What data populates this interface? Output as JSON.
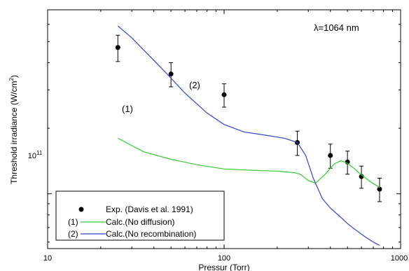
{
  "chart_data": {
    "type": "scatter",
    "xlabel": "Pressur (Torr)",
    "ylabel": "Threshold irradiance (W/cm",
    "ylabel_sup": "2",
    "ylabel_end": ")",
    "xscale": "log",
    "yscale": "log",
    "xlim": [
      10,
      1000
    ],
    "ylim": [
      56000000000.0,
      700000000000.0
    ],
    "x_ticks": [
      {
        "v": 10,
        "label": "10"
      },
      {
        "v": 100,
        "label": "100"
      },
      {
        "v": 1000,
        "label": "1000"
      }
    ],
    "y_ticks": [
      {
        "v": 100000000000.0,
        "base": "10",
        "exp": "11"
      }
    ],
    "grid": false,
    "annotation": "λ=1064 nm",
    "legend_position": "bottom-left",
    "series": [
      {
        "name": "Exp. (Davis et al. 1991)",
        "kind": "points",
        "color": "#000000",
        "x": [
          25,
          50,
          100,
          260,
          400,
          500,
          600,
          760
        ],
        "y": [
          470000000000.0,
          355000000000.0,
          285000000000.0,
          172000000000.0,
          150000000000.0,
          140000000000.0,
          120000000000.0,
          105000000000.0
        ],
        "err": [
          65000000000.0,
          45000000000.0,
          35000000000.0,
          22000000000.0,
          19000000000.0,
          17000000000.0,
          14000000000.0,
          13000000000.0
        ]
      },
      {
        "name": "Calc.(No diffusion)",
        "label": "(1)",
        "kind": "line",
        "color": "#33cc33",
        "x": [
          25,
          35,
          50,
          70,
          100,
          150,
          200,
          250,
          270,
          300,
          330,
          370,
          420,
          460,
          500,
          550,
          600,
          680,
          760
        ],
        "y": [
          180000000000.0,
          156000000000.0,
          144000000000.0,
          136000000000.0,
          130000000000.0,
          128000000000.0,
          127000000000.0,
          125000000000.0,
          123000000000.0,
          115000000000.0,
          112000000000.0,
          122000000000.0,
          137000000000.0,
          142000000000.0,
          138000000000.0,
          130000000000.0,
          122000000000.0,
          113000000000.0,
          107000000000.0
        ]
      },
      {
        "name": "Calc.(No recombination)",
        "label": "(2)",
        "kind": "line",
        "color": "#3344cc",
        "x": [
          25,
          30,
          40,
          50,
          60,
          80,
          100,
          130,
          170,
          220,
          260,
          290,
          320,
          360,
          400,
          450,
          500,
          560,
          620,
          700,
          760
        ],
        "y": [
          590000000000.0,
          520000000000.0,
          410000000000.0,
          340000000000.0,
          290000000000.0,
          235000000000.0,
          208000000000.0,
          192000000000.0,
          186000000000.0,
          180000000000.0,
          172000000000.0,
          150000000000.0,
          118000000000.0,
          95000000000.0,
          86000000000.0,
          79000000000.0,
          73000000000.0,
          68000000000.0,
          64000000000.0,
          60000000000.0,
          58000000000.0
        ]
      }
    ]
  }
}
